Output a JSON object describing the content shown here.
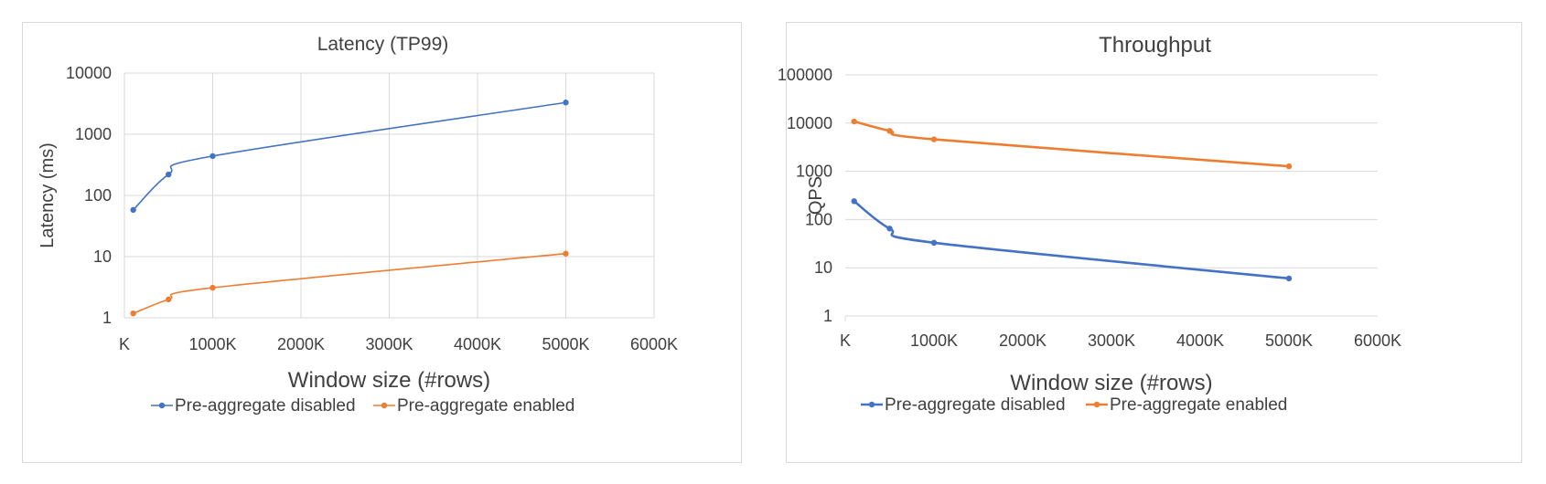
{
  "colors": {
    "disabled": "#4472c4",
    "enabled": "#ed7d31"
  },
  "chart_data": [
    {
      "type": "line",
      "title": "Latency (TP99)",
      "xlabel": "Window size (#rows)",
      "ylabel": "Latency (ms)",
      "yscale": "log",
      "ylim": [
        1,
        10000
      ],
      "xlim": [
        0,
        6000
      ],
      "x_ticks": [
        "K",
        "1000K",
        "2000K",
        "3000K",
        "4000K",
        "5000K",
        "6000K"
      ],
      "y_ticks": [
        "1",
        "10",
        "100",
        "1000",
        "10000"
      ],
      "grid": "both",
      "legend_position": "bottom",
      "series": [
        {
          "name": "Pre-aggregate disabled",
          "x": [
            100,
            500,
            1000,
            5000
          ],
          "y": [
            58,
            220,
            440,
            3300
          ]
        },
        {
          "name": "Pre-aggregate enabled",
          "x": [
            100,
            500,
            1000,
            5000
          ],
          "y": [
            1.18,
            2.0,
            3.1,
            11.2
          ]
        }
      ]
    },
    {
      "type": "line",
      "title": "Throughput",
      "xlabel": "Window size (#rows)",
      "ylabel": "QPS",
      "yscale": "log",
      "ylim": [
        1,
        100000
      ],
      "xlim": [
        0,
        6000
      ],
      "x_ticks": [
        "K",
        "1000K",
        "2000K",
        "3000K",
        "4000K",
        "5000K",
        "6000K"
      ],
      "y_ticks": [
        "1",
        "10",
        "100",
        "1000",
        "10000",
        "100000"
      ],
      "grid": "horizontal",
      "legend_position": "bottom",
      "series": [
        {
          "name": "Pre-aggregate disabled",
          "x": [
            100,
            500,
            1000,
            5000
          ],
          "y": [
            240,
            65,
            33,
            6
          ]
        },
        {
          "name": "Pre-aggregate enabled",
          "x": [
            100,
            500,
            1000,
            5000
          ],
          "y": [
            10800,
            6900,
            4600,
            1270
          ]
        }
      ]
    }
  ]
}
